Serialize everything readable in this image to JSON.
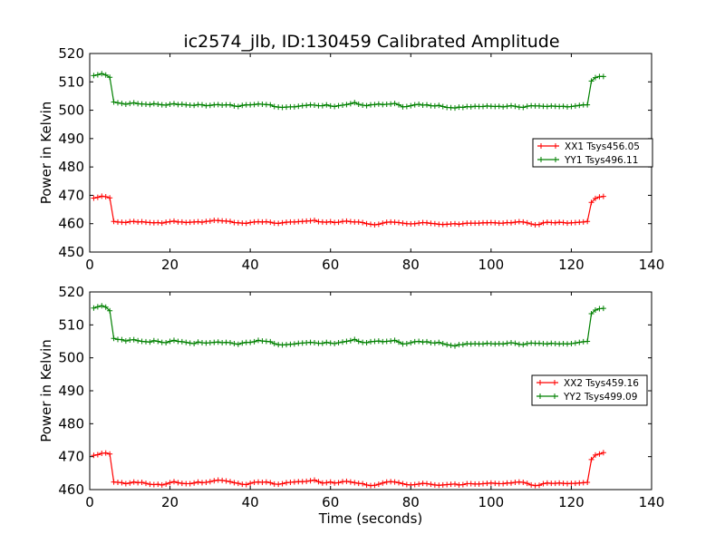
{
  "figure": {
    "title": "ic2574_jlb, ID:130459 Calibrated Amplitude"
  },
  "chart_data": [
    {
      "type": "line",
      "title": "ic2574_jlb, ID:130459 Calibrated Amplitude",
      "xlabel": "",
      "ylabel": "Power in Kelvin",
      "xlim": [
        0,
        140
      ],
      "ylim": [
        450,
        520
      ],
      "xticks": [
        "0",
        "20",
        "40",
        "60",
        "80",
        "100",
        "120",
        "140"
      ],
      "yticks": [
        "450",
        "460",
        "470",
        "480",
        "490",
        "500",
        "510",
        "520"
      ],
      "legend_position": "right",
      "series": [
        {
          "name": "XX1 Tsys456.05",
          "color": "#ff0000",
          "x": [
            1,
            2,
            3,
            4,
            5,
            6,
            7,
            8,
            9,
            10,
            11,
            12,
            13,
            14,
            15,
            16,
            17,
            18,
            19,
            20,
            21,
            22,
            23,
            24,
            25,
            26,
            27,
            28,
            29,
            30,
            31,
            32,
            33,
            34,
            35,
            36,
            37,
            38,
            39,
            40,
            41,
            42,
            43,
            44,
            45,
            46,
            47,
            48,
            49,
            50,
            51,
            52,
            53,
            54,
            55,
            56,
            57,
            58,
            59,
            60,
            61,
            62,
            63,
            64,
            65,
            66,
            67,
            68,
            69,
            70,
            71,
            72,
            73,
            74,
            75,
            76,
            77,
            78,
            79,
            80,
            81,
            82,
            83,
            84,
            85,
            86,
            87,
            88,
            89,
            90,
            91,
            92,
            93,
            94,
            95,
            96,
            97,
            98,
            99,
            100,
            101,
            102,
            103,
            104,
            105,
            106,
            107,
            108,
            109,
            110,
            111,
            112,
            113,
            114,
            115,
            116,
            117,
            118,
            119,
            120,
            121,
            122,
            123,
            124,
            125,
            126,
            127,
            128
          ],
          "values": [
            469.0,
            469.3,
            469.7,
            469.5,
            469.1,
            460.8,
            460.6,
            460.5,
            460.4,
            460.7,
            460.8,
            460.6,
            460.7,
            460.5,
            460.4,
            460.3,
            460.4,
            460.2,
            460.5,
            460.7,
            460.9,
            460.6,
            460.6,
            460.4,
            460.5,
            460.6,
            460.7,
            460.5,
            460.8,
            460.9,
            461.2,
            461.1,
            461.0,
            460.9,
            460.8,
            460.4,
            460.3,
            460.2,
            460.1,
            460.4,
            460.6,
            460.7,
            460.6,
            460.7,
            460.5,
            460.2,
            460.1,
            460.3,
            460.5,
            460.6,
            460.6,
            460.7,
            460.8,
            460.9,
            461.0,
            461.2,
            460.7,
            460.6,
            460.5,
            460.7,
            460.4,
            460.5,
            460.8,
            460.9,
            460.7,
            460.6,
            460.6,
            460.4,
            460.0,
            459.8,
            459.6,
            459.8,
            460.2,
            460.5,
            460.6,
            460.5,
            460.4,
            460.2,
            460.0,
            459.9,
            460.0,
            460.2,
            460.4,
            460.3,
            460.1,
            460.0,
            459.8,
            459.7,
            459.8,
            459.9,
            460.0,
            459.8,
            460.0,
            460.2,
            460.2,
            460.2,
            460.2,
            460.3,
            460.3,
            460.4,
            460.3,
            460.2,
            460.2,
            460.4,
            460.3,
            460.5,
            460.7,
            460.6,
            460.3,
            459.9,
            459.6,
            459.7,
            460.3,
            460.5,
            460.4,
            460.3,
            460.5,
            460.4,
            460.2,
            460.3,
            460.4,
            460.5,
            460.6,
            460.8,
            467.5,
            468.9,
            469.4,
            469.6
          ]
        },
        {
          "name": "YY1 Tsys496.11",
          "color": "#008000",
          "x": [
            1,
            2,
            3,
            4,
            5,
            6,
            7,
            8,
            9,
            10,
            11,
            12,
            13,
            14,
            15,
            16,
            17,
            18,
            19,
            20,
            21,
            22,
            23,
            24,
            25,
            26,
            27,
            28,
            29,
            30,
            31,
            32,
            33,
            34,
            35,
            36,
            37,
            38,
            39,
            40,
            41,
            42,
            43,
            44,
            45,
            46,
            47,
            48,
            49,
            50,
            51,
            52,
            53,
            54,
            55,
            56,
            57,
            58,
            59,
            60,
            61,
            62,
            63,
            64,
            65,
            66,
            67,
            68,
            69,
            70,
            71,
            72,
            73,
            74,
            75,
            76,
            77,
            78,
            79,
            80,
            81,
            82,
            83,
            84,
            85,
            86,
            87,
            88,
            89,
            90,
            91,
            92,
            93,
            94,
            95,
            96,
            97,
            98,
            99,
            100,
            101,
            102,
            103,
            104,
            105,
            106,
            107,
            108,
            109,
            110,
            111,
            112,
            113,
            114,
            115,
            116,
            117,
            118,
            119,
            120,
            121,
            122,
            123,
            124,
            125,
            126,
            127,
            128
          ],
          "values": [
            512.2,
            512.5,
            512.9,
            512.4,
            511.6,
            502.9,
            502.6,
            502.4,
            502.1,
            502.4,
            502.6,
            502.3,
            502.2,
            502.1,
            502.0,
            502.3,
            502.1,
            501.9,
            501.8,
            502.1,
            502.3,
            502.0,
            502.1,
            501.9,
            501.8,
            501.7,
            502.0,
            501.9,
            501.6,
            501.7,
            501.9,
            502.0,
            501.8,
            501.9,
            501.9,
            501.5,
            501.3,
            501.7,
            501.9,
            501.9,
            502.0,
            502.2,
            502.1,
            502.0,
            501.9,
            501.3,
            501.1,
            501.0,
            501.1,
            501.2,
            501.2,
            501.4,
            501.6,
            501.7,
            501.9,
            501.8,
            501.6,
            501.6,
            501.9,
            501.5,
            501.3,
            501.6,
            501.8,
            502.0,
            502.3,
            502.7,
            502.1,
            501.8,
            501.6,
            501.9,
            502.0,
            502.2,
            502.0,
            502.1,
            502.2,
            502.4,
            501.9,
            501.2,
            501.3,
            501.6,
            501.9,
            502.1,
            501.8,
            501.9,
            501.6,
            501.5,
            501.7,
            501.3,
            501.0,
            500.9,
            500.8,
            501.1,
            501.0,
            501.3,
            501.2,
            501.4,
            501.3,
            501.3,
            501.5,
            501.4,
            501.3,
            501.4,
            501.2,
            501.4,
            501.6,
            501.4,
            501.1,
            501.0,
            501.4,
            501.6,
            501.5,
            501.5,
            501.4,
            501.3,
            501.5,
            501.4,
            501.3,
            501.4,
            501.2,
            501.3,
            501.5,
            501.7,
            501.9,
            501.9,
            510.3,
            511.5,
            511.9,
            511.9
          ]
        }
      ]
    },
    {
      "type": "line",
      "title": "",
      "xlabel": "Time (seconds)",
      "ylabel": "Power in Kelvin",
      "xlim": [
        0,
        140
      ],
      "ylim": [
        460,
        520
      ],
      "xticks": [
        "0",
        "20",
        "40",
        "60",
        "80",
        "100",
        "120",
        "140"
      ],
      "yticks": [
        "460",
        "470",
        "480",
        "490",
        "500",
        "510",
        "520"
      ],
      "legend_position": "right",
      "series": [
        {
          "name": "XX2 Tsys459.16",
          "color": "#ff0000",
          "x": [
            1,
            2,
            3,
            4,
            5,
            6,
            7,
            8,
            9,
            10,
            11,
            12,
            13,
            14,
            15,
            16,
            17,
            18,
            19,
            20,
            21,
            22,
            23,
            24,
            25,
            26,
            27,
            28,
            29,
            30,
            31,
            32,
            33,
            34,
            35,
            36,
            37,
            38,
            39,
            40,
            41,
            42,
            43,
            44,
            45,
            46,
            47,
            48,
            49,
            50,
            51,
            52,
            53,
            54,
            55,
            56,
            57,
            58,
            59,
            60,
            61,
            62,
            63,
            64,
            65,
            66,
            67,
            68,
            69,
            70,
            71,
            72,
            73,
            74,
            75,
            76,
            77,
            78,
            79,
            80,
            81,
            82,
            83,
            84,
            85,
            86,
            87,
            88,
            89,
            90,
            91,
            92,
            93,
            94,
            95,
            96,
            97,
            98,
            99,
            100,
            101,
            102,
            103,
            104,
            105,
            106,
            107,
            108,
            109,
            110,
            111,
            112,
            113,
            114,
            115,
            116,
            117,
            118,
            119,
            120,
            121,
            122,
            123,
            124,
            125,
            126,
            127,
            128
          ],
          "values": [
            470.4,
            470.6,
            471.0,
            471.1,
            470.8,
            462.3,
            462.2,
            462.1,
            461.8,
            462.0,
            462.3,
            462.1,
            462.2,
            461.9,
            461.6,
            461.5,
            461.6,
            461.4,
            461.7,
            462.1,
            462.4,
            462.1,
            461.9,
            461.8,
            461.8,
            462.0,
            462.3,
            462.1,
            462.2,
            462.4,
            462.7,
            462.9,
            462.8,
            462.6,
            462.4,
            462.1,
            461.9,
            461.6,
            461.5,
            461.9,
            462.2,
            462.3,
            462.2,
            462.3,
            462.1,
            461.7,
            461.6,
            461.8,
            462.1,
            462.2,
            462.3,
            462.4,
            462.4,
            462.5,
            462.7,
            462.9,
            462.4,
            462.0,
            462.1,
            462.3,
            462.0,
            462.1,
            462.4,
            462.5,
            462.3,
            462.1,
            461.9,
            461.8,
            461.4,
            461.2,
            461.3,
            461.6,
            462.0,
            462.3,
            462.4,
            462.3,
            462.1,
            461.8,
            461.5,
            461.4,
            461.5,
            461.7,
            461.9,
            461.8,
            461.6,
            461.4,
            461.3,
            461.4,
            461.5,
            461.6,
            461.7,
            461.4,
            461.5,
            461.8,
            461.8,
            461.7,
            461.7,
            461.8,
            461.9,
            462.0,
            461.9,
            461.8,
            461.8,
            462.0,
            462.0,
            462.2,
            462.3,
            462.2,
            461.9,
            461.4,
            461.2,
            461.3,
            461.8,
            462.0,
            461.9,
            461.9,
            462.0,
            461.9,
            461.8,
            461.9,
            461.9,
            462.0,
            462.1,
            462.2,
            469.1,
            470.5,
            470.8,
            471.2
          ]
        },
        {
          "name": "YY2 Tsys499.09",
          "color": "#008000",
          "x": [
            1,
            2,
            3,
            4,
            5,
            6,
            7,
            8,
            9,
            10,
            11,
            12,
            13,
            14,
            15,
            16,
            17,
            18,
            19,
            20,
            21,
            22,
            23,
            24,
            25,
            26,
            27,
            28,
            29,
            30,
            31,
            32,
            33,
            34,
            35,
            36,
            37,
            38,
            39,
            40,
            41,
            42,
            43,
            44,
            45,
            46,
            47,
            48,
            49,
            50,
            51,
            52,
            53,
            54,
            55,
            56,
            57,
            58,
            59,
            60,
            61,
            62,
            63,
            64,
            65,
            66,
            67,
            68,
            69,
            70,
            71,
            72,
            73,
            74,
            75,
            76,
            77,
            78,
            79,
            80,
            81,
            82,
            83,
            84,
            85,
            86,
            87,
            88,
            89,
            90,
            91,
            92,
            93,
            94,
            95,
            96,
            97,
            98,
            99,
            100,
            101,
            102,
            103,
            104,
            105,
            106,
            107,
            108,
            109,
            110,
            111,
            112,
            113,
            114,
            115,
            116,
            117,
            118,
            119,
            120,
            121,
            122,
            123,
            124,
            125,
            126,
            127,
            128
          ],
          "values": [
            515.1,
            515.5,
            515.8,
            515.4,
            514.3,
            505.9,
            505.6,
            505.5,
            505.1,
            505.4,
            505.5,
            505.2,
            505.0,
            504.9,
            504.8,
            505.2,
            505.0,
            504.7,
            504.6,
            505.0,
            505.3,
            505.0,
            504.9,
            504.7,
            504.5,
            504.3,
            504.8,
            504.6,
            504.5,
            504.6,
            504.7,
            504.8,
            504.6,
            504.7,
            504.6,
            504.3,
            504.1,
            504.5,
            504.7,
            504.7,
            504.9,
            505.3,
            505.1,
            505.0,
            504.9,
            504.3,
            504.0,
            503.9,
            504.0,
            504.1,
            504.2,
            504.4,
            504.5,
            504.6,
            504.7,
            504.6,
            504.4,
            504.4,
            504.7,
            504.5,
            504.3,
            504.6,
            504.8,
            505.0,
            505.2,
            505.6,
            505.0,
            504.7,
            504.6,
            504.9,
            505.0,
            505.1,
            504.9,
            505.0,
            505.1,
            505.3,
            504.8,
            504.2,
            504.3,
            504.6,
            504.9,
            505.0,
            504.8,
            504.9,
            504.6,
            504.5,
            504.7,
            504.3,
            504.0,
            503.8,
            503.6,
            504.0,
            504.0,
            504.3,
            504.2,
            504.3,
            504.2,
            504.2,
            504.4,
            504.3,
            504.2,
            504.3,
            504.2,
            504.4,
            504.6,
            504.4,
            504.1,
            504.0,
            504.3,
            504.5,
            504.4,
            504.4,
            504.3,
            504.2,
            504.4,
            504.3,
            504.2,
            504.3,
            504.2,
            504.3,
            504.5,
            504.7,
            504.9,
            505.0,
            513.4,
            514.5,
            514.9,
            515.0
          ]
        }
      ]
    }
  ]
}
